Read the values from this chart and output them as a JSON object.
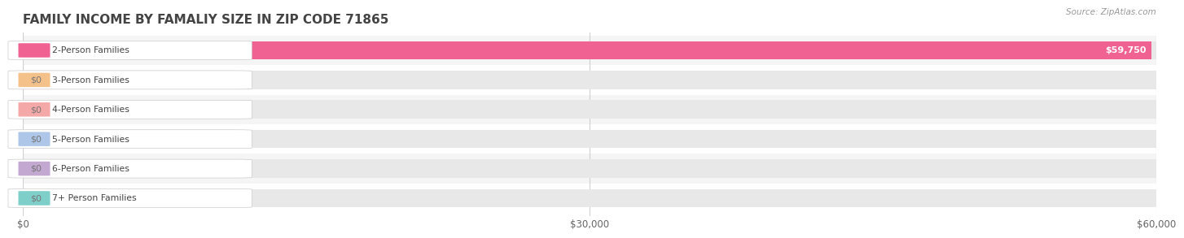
{
  "title": "FAMILY INCOME BY FAMALIY SIZE IN ZIP CODE 71865",
  "source": "Source: ZipAtlas.com",
  "categories": [
    "2-Person Families",
    "3-Person Families",
    "4-Person Families",
    "5-Person Families",
    "6-Person Families",
    "7+ Person Families"
  ],
  "values": [
    59750,
    0,
    0,
    0,
    0,
    0
  ],
  "bar_colors": [
    "#f06292",
    "#f5c18a",
    "#f4a9a8",
    "#aec6e8",
    "#c3a8d1",
    "#7ececa"
  ],
  "value_labels": [
    "$59,750",
    "$0",
    "$0",
    "$0",
    "$0",
    "$0"
  ],
  "xlim": [
    0,
    60000
  ],
  "xticks": [
    0,
    30000,
    60000
  ],
  "xtick_labels": [
    "$0",
    "$30,000",
    "$60,000"
  ],
  "title_fontsize": 11,
  "background_color": "#ffffff",
  "bar_bg_color": "#e8e8e8",
  "row_bg_colors": [
    "#f5f5f5",
    "#ffffff"
  ],
  "bar_height": 0.62,
  "label_fontsize": 7.8,
  "value_fontsize": 8.0,
  "grid_color": "#d0d0d0"
}
